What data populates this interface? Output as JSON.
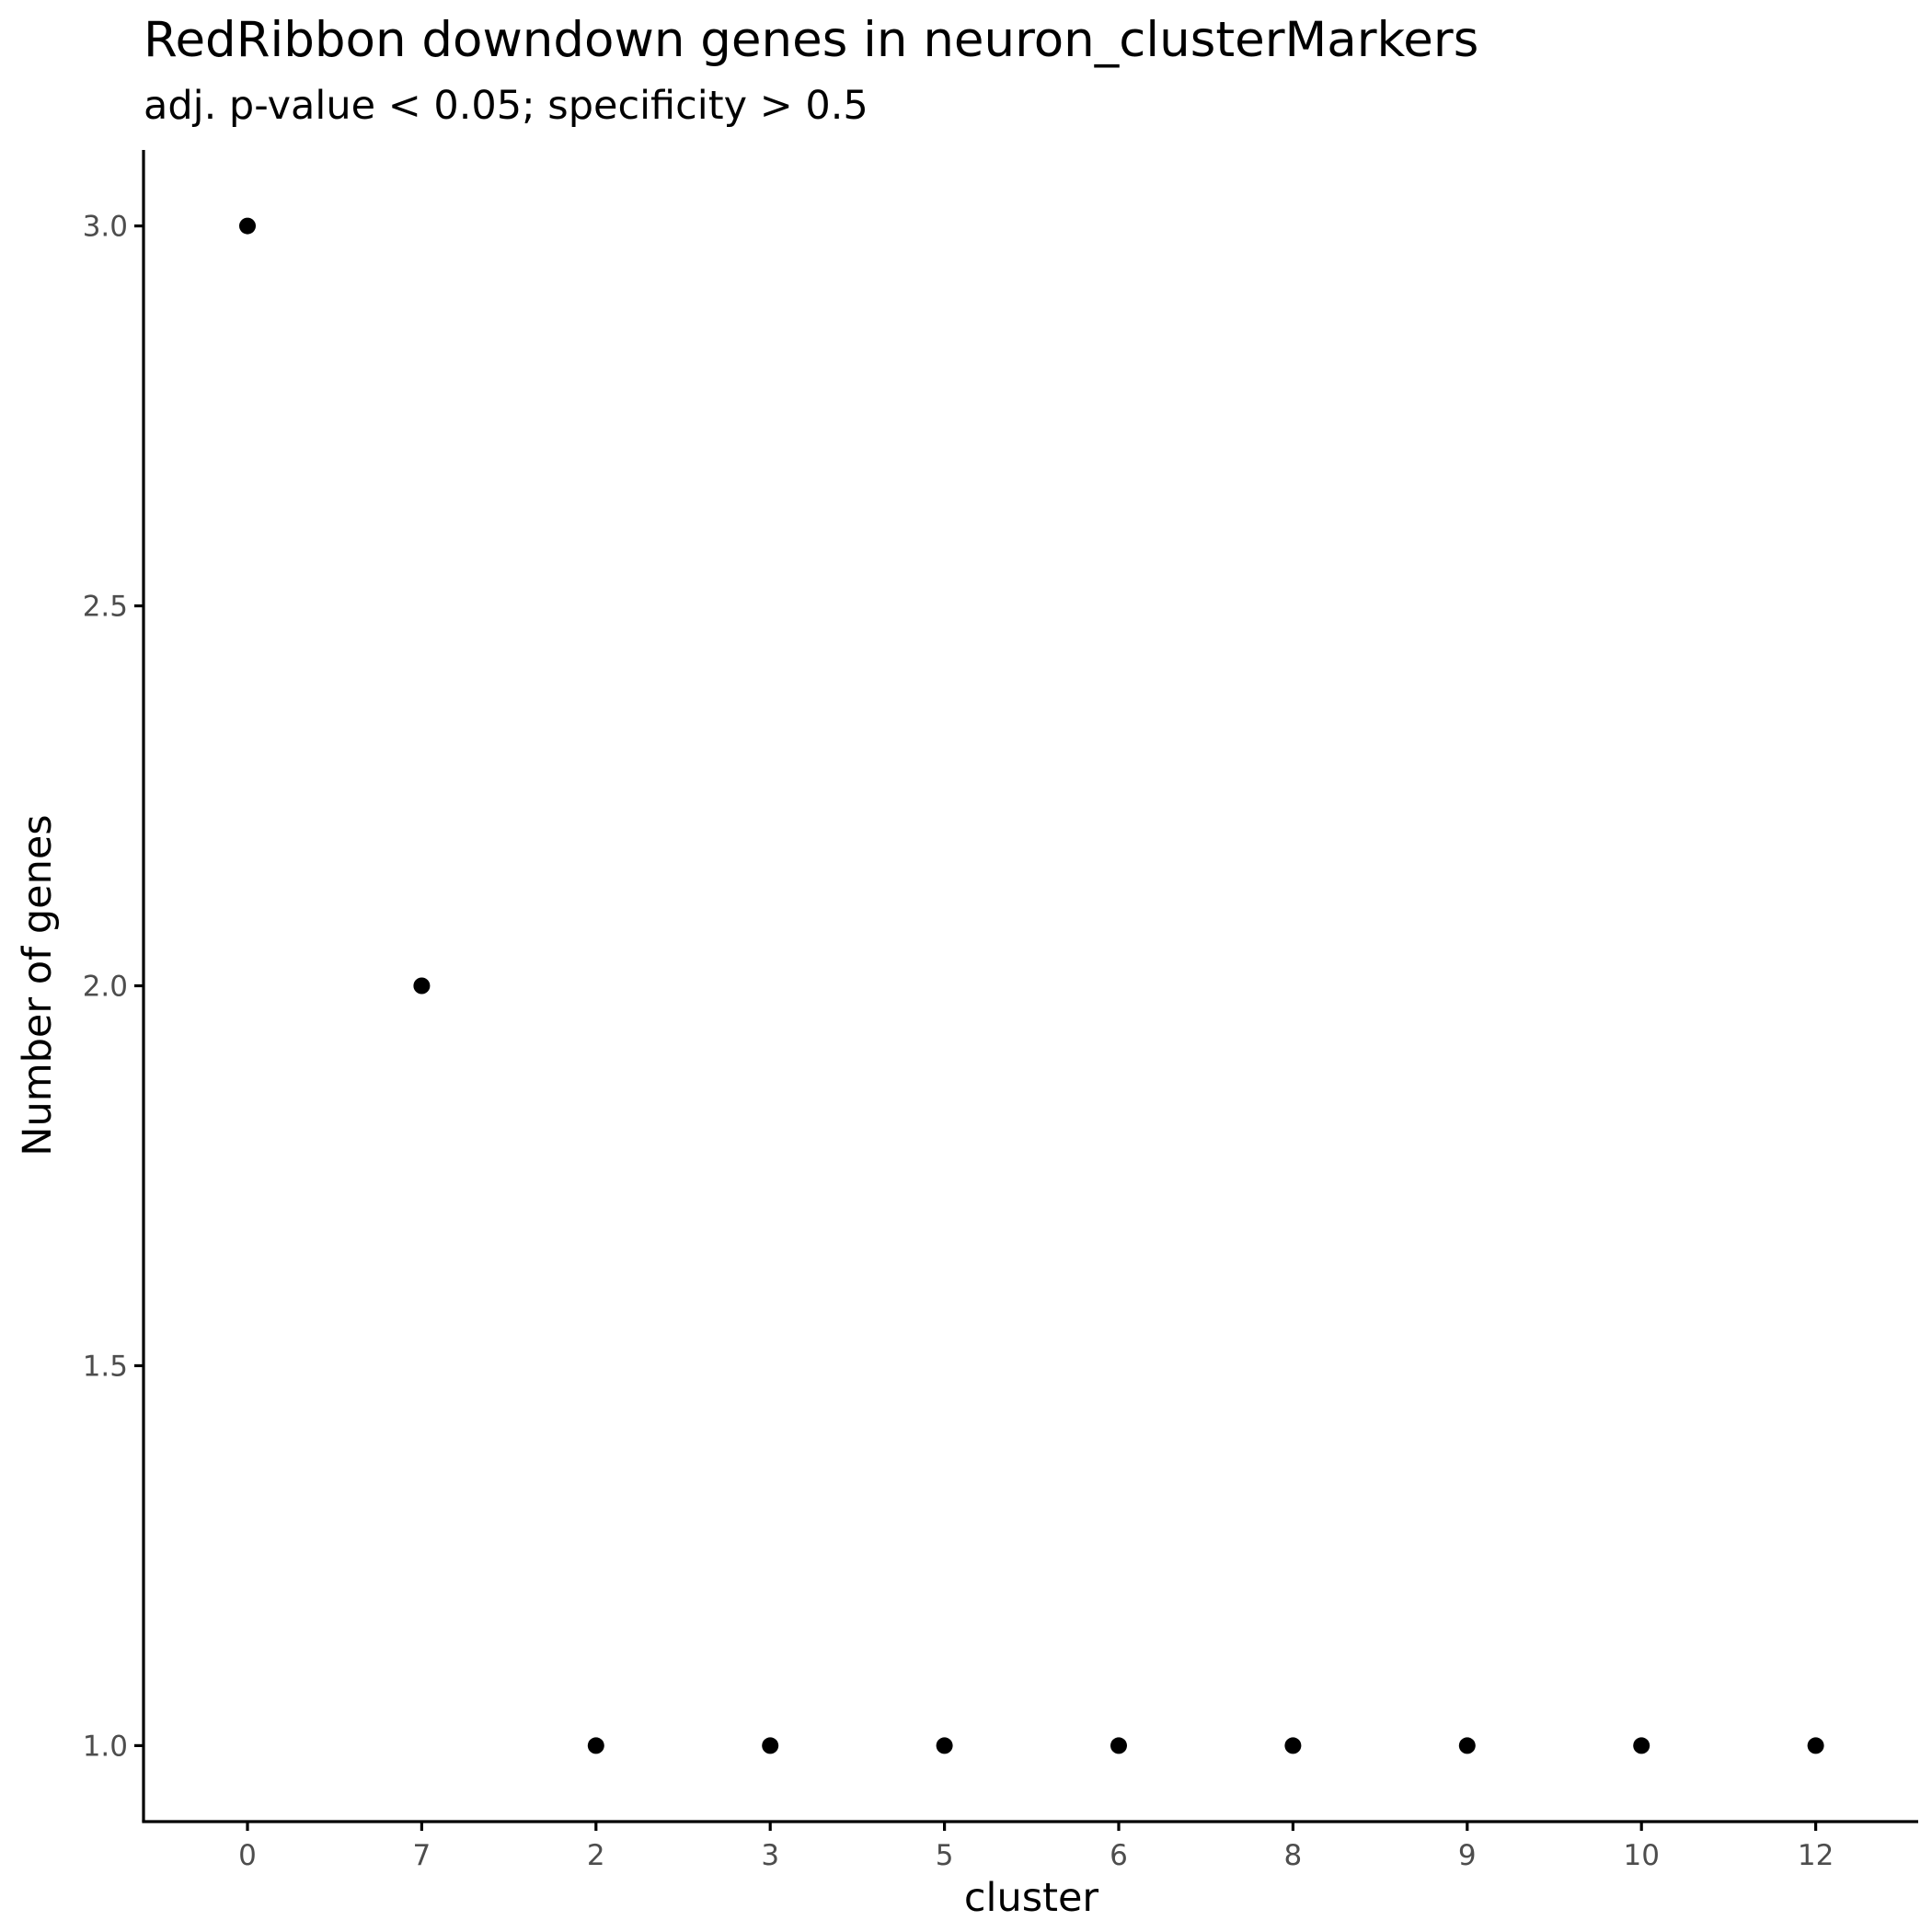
{
  "chart_data": {
    "type": "scatter",
    "title": "RedRibbon downdown genes in neuron_clusterMarkers",
    "subtitle": "adj. p-value < 0.05; specificity > 0.5",
    "xlabel": "cluster",
    "ylabel": "Number of genes",
    "categories": [
      "0",
      "7",
      "2",
      "3",
      "5",
      "6",
      "8",
      "9",
      "10",
      "12"
    ],
    "values": [
      3,
      2,
      1,
      1,
      1,
      1,
      1,
      1,
      1,
      1
    ],
    "ylim": [
      0.9,
      3.1
    ],
    "yticks": [
      "1.0",
      "1.5",
      "2.0",
      "2.5",
      "3.0"
    ],
    "grid": false,
    "legend": "none",
    "point_color": "#000000",
    "axis_color": "#000000",
    "tick_label_color": "#4d4d4d"
  }
}
